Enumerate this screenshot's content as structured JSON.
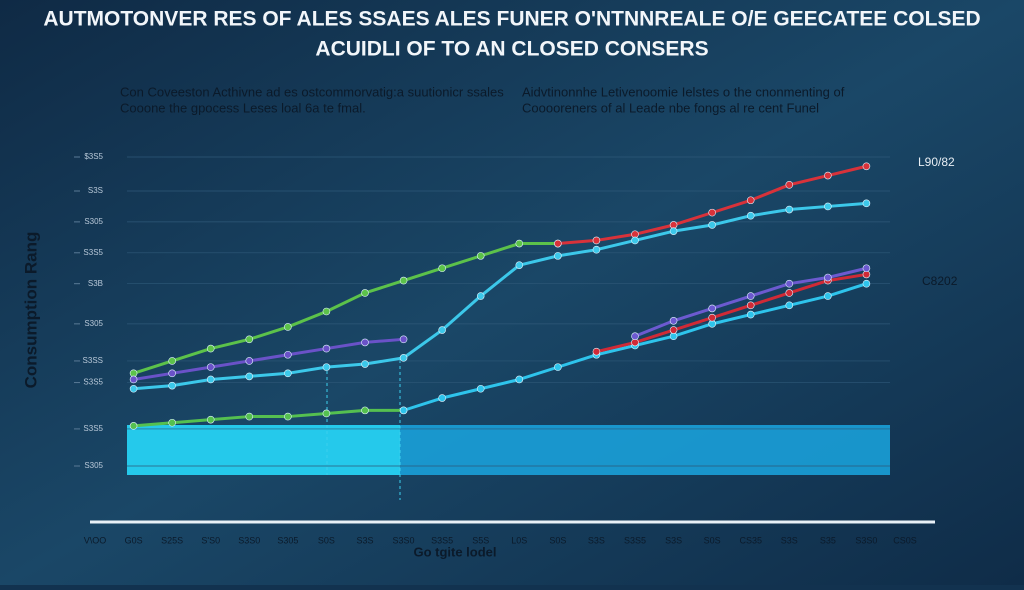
{
  "chart_data": {
    "type": "line",
    "title": "AUTMOTONVER RES OF ALES SSAES ALES FUNER O'NTNNREALE O/E GEECATEE COLSED",
    "subtitle": "ACUIDLI OF TO AN CLOSED CONSERS",
    "notes": [
      "Con Coveeston Acthivne ad es ostcommorvatig:a suutionicr ssales",
      "Cooone the gpocess Leses loal 6a te fmal.",
      "Aidvtinonnhe Letivenoomie Ielstes o the cnonmenting of",
      "Cooooreners of al Leade nbe fongs al re cent Funel"
    ],
    "ylabel": "Consumption Rang",
    "xlabel": "Go tgite lodel",
    "end_labels": [
      "L90/82",
      "C8202"
    ],
    "categories": [
      "V\\OO",
      "G0S",
      "S25S",
      "S'S0",
      "S3S0",
      "S305",
      "S0S",
      "S3S",
      "S3S0",
      "S3S5",
      "S5S",
      "L0S",
      "S0S",
      "S3S",
      "S3S5",
      "S3S",
      "S0S",
      "CS35",
      "S3S",
      "S35",
      "S3S0",
      "CS0S"
    ],
    "ylim": [
      0,
      100
    ],
    "yticks": [
      {
        "value": 0,
        "label": "S305"
      },
      {
        "value": 12,
        "label": "S3S5"
      },
      {
        "value": 27,
        "label": "S3S5"
      },
      {
        "value": 34,
        "label": "S3SS"
      },
      {
        "value": 46,
        "label": "S305"
      },
      {
        "value": 59,
        "label": "S3B"
      },
      {
        "value": 69,
        "label": "S3S5"
      },
      {
        "value": 79,
        "label": "S305"
      },
      {
        "value": 89,
        "label": "S3S"
      },
      {
        "value": 100,
        "label": "$3S5"
      }
    ],
    "grid": true,
    "series": [
      {
        "name": "Green upper",
        "color": "#5cc24a",
        "values": [
          null,
          30,
          34,
          38,
          41,
          45,
          50,
          56,
          60,
          64,
          68,
          72,
          72,
          null,
          null,
          null,
          null,
          null,
          null,
          null,
          null,
          null
        ]
      },
      {
        "name": "Red upper",
        "color": "#d8323a",
        "values": [
          null,
          null,
          null,
          null,
          null,
          null,
          null,
          null,
          null,
          null,
          null,
          null,
          72,
          73,
          75,
          78,
          82,
          86,
          91,
          94,
          97,
          null
        ]
      },
      {
        "name": "Cyan upper",
        "color": "#3cc8ea",
        "values": [
          null,
          25,
          26,
          28,
          29,
          30,
          32,
          33,
          35,
          44,
          55,
          65,
          68,
          70,
          73,
          76,
          78,
          81,
          83,
          84,
          85,
          null
        ]
      },
      {
        "name": "Purple upper",
        "color": "#6a52c8",
        "values": [
          null,
          28,
          30,
          32,
          34,
          36,
          38,
          40,
          41,
          null,
          null,
          null,
          null,
          null,
          null,
          null,
          null,
          null,
          null,
          null,
          null,
          null
        ]
      },
      {
        "name": "Green lower",
        "color": "#55c050",
        "values": [
          null,
          13,
          14,
          15,
          16,
          16,
          17,
          18,
          18,
          null,
          null,
          null,
          null,
          null,
          null,
          null,
          null,
          null,
          null,
          null,
          null,
          null
        ]
      },
      {
        "name": "Cyan lower",
        "color": "#2ec4ec",
        "values": [
          null,
          null,
          null,
          null,
          null,
          null,
          null,
          null,
          18,
          22,
          25,
          28,
          32,
          36,
          39,
          42,
          46,
          49,
          52,
          55,
          59,
          null
        ]
      },
      {
        "name": "Red lower",
        "color": "#d02a36",
        "values": [
          null,
          null,
          null,
          null,
          null,
          null,
          null,
          null,
          null,
          null,
          null,
          null,
          null,
          37,
          40,
          44,
          48,
          52,
          56,
          60,
          62,
          null
        ]
      },
      {
        "name": "Purple lower",
        "color": "#6c5ad0",
        "values": [
          null,
          null,
          null,
          null,
          null,
          null,
          null,
          null,
          null,
          null,
          null,
          null,
          null,
          null,
          42,
          47,
          51,
          55,
          59,
          61,
          64,
          null
        ]
      }
    ]
  }
}
